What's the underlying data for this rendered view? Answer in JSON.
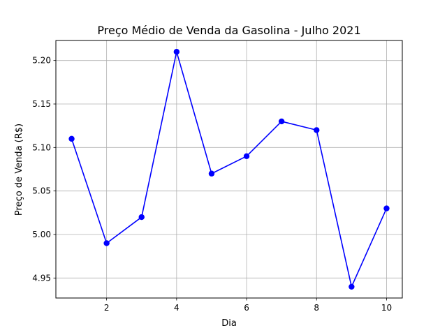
{
  "chart_data": {
    "type": "line",
    "title": "Preço Médio de Venda da Gasolina - Julho 2021",
    "xlabel": "Dia",
    "ylabel": "Preço de Venda (R$)",
    "x": [
      1,
      2,
      3,
      4,
      5,
      6,
      7,
      8,
      9,
      10
    ],
    "series": [
      {
        "name": "Preço Médio",
        "values": [
          5.11,
          4.99,
          5.02,
          5.21,
          5.07,
          5.09,
          5.13,
          5.12,
          4.94,
          5.03
        ],
        "color": "#0000ff"
      }
    ],
    "xlim": [
      0.55,
      10.45
    ],
    "ylim": [
      4.927,
      5.223
    ],
    "xticks": [
      2,
      4,
      6,
      8,
      10
    ],
    "xtick_labels": [
      "2",
      "4",
      "6",
      "8",
      "10"
    ],
    "yticks": [
      4.95,
      5.0,
      5.05,
      5.1,
      5.15,
      5.2
    ],
    "ytick_labels": [
      "4.95",
      "5.00",
      "5.05",
      "5.10",
      "5.15",
      "5.20"
    ],
    "grid": true,
    "grid_color": "#b0b0b0",
    "legend": false
  }
}
